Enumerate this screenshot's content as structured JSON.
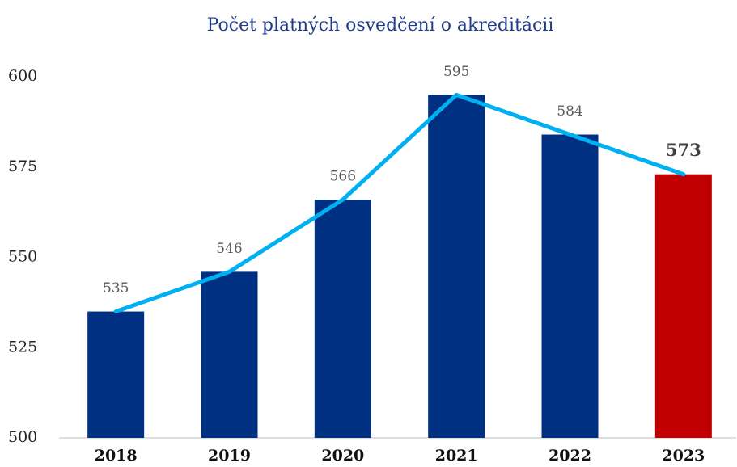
{
  "chart_data": {
    "type": "bar",
    "title": "Počet platných osvedčení o akreditácii",
    "categories": [
      "2018",
      "2019",
      "2020",
      "2021",
      "2022",
      "2023"
    ],
    "values": [
      535,
      546,
      566,
      595,
      584,
      573
    ],
    "colors": [
      "#003082",
      "#003082",
      "#003082",
      "#003082",
      "#003082",
      "#c00000"
    ],
    "label_bold": [
      false,
      false,
      false,
      false,
      false,
      true
    ],
    "line_color": "#00b0f0",
    "ylim": [
      500,
      600
    ],
    "yticks": [
      500,
      525,
      550,
      575,
      600
    ],
    "grid": false
  }
}
